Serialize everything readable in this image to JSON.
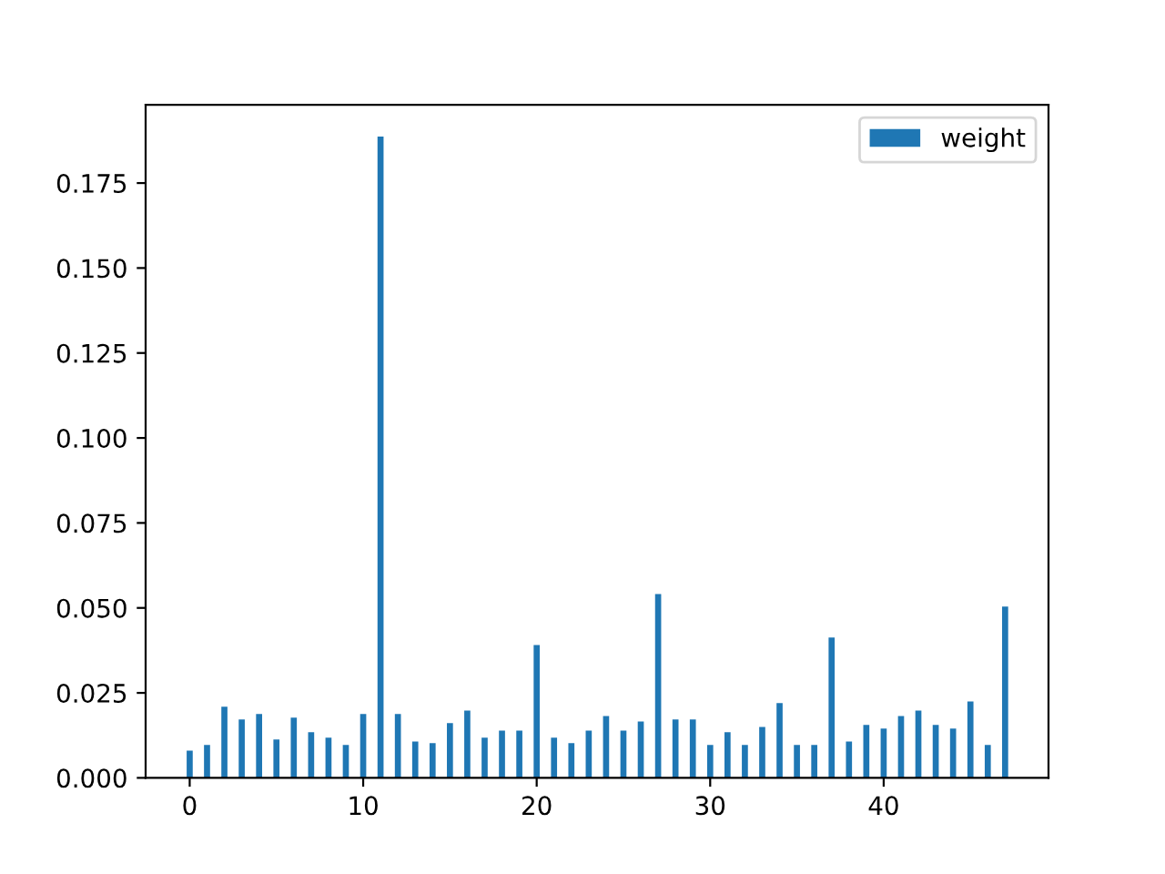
{
  "chart_data": {
    "type": "bar",
    "x": [
      0,
      1,
      2,
      3,
      4,
      5,
      6,
      7,
      8,
      9,
      10,
      11,
      12,
      13,
      14,
      15,
      16,
      17,
      18,
      19,
      20,
      21,
      22,
      23,
      24,
      25,
      26,
      27,
      28,
      29,
      30,
      31,
      32,
      33,
      34,
      35,
      36,
      37,
      38,
      39,
      40,
      41,
      42,
      43,
      44,
      45,
      46,
      47
    ],
    "series": [
      {
        "name": "weight",
        "color": "#1f77b4",
        "values": [
          0.008,
          0.0097,
          0.0209,
          0.0172,
          0.0188,
          0.0113,
          0.0177,
          0.0134,
          0.0118,
          0.0097,
          0.0188,
          0.1887,
          0.0188,
          0.0107,
          0.0102,
          0.0161,
          0.0198,
          0.0118,
          0.0139,
          0.0139,
          0.0391,
          0.0118,
          0.0102,
          0.0139,
          0.0182,
          0.0139,
          0.0166,
          0.0541,
          0.0172,
          0.0172,
          0.0097,
          0.0134,
          0.0097,
          0.015,
          0.022,
          0.0097,
          0.0097,
          0.0413,
          0.0107,
          0.0156,
          0.0145,
          0.0182,
          0.0198,
          0.0156,
          0.0145,
          0.0225,
          0.0097,
          0.0504
        ]
      }
    ],
    "xlim": [
      -2.54,
      49.5
    ],
    "ylim": [
      0,
      0.198
    ],
    "xticks": [
      0,
      10,
      20,
      30,
      40
    ],
    "yticks": [
      {
        "value": 0,
        "label": "0.000"
      },
      {
        "value": 0.025,
        "label": "0.025"
      },
      {
        "value": 0.05,
        "label": "0.050"
      },
      {
        "value": 0.075,
        "label": "0.075"
      },
      {
        "value": 0.1,
        "label": "0.100"
      },
      {
        "value": 0.125,
        "label": "0.125"
      },
      {
        "value": 0.15,
        "label": "0.150"
      },
      {
        "value": 0.175,
        "label": "0.175"
      }
    ],
    "legend": "top right",
    "grid": false
  }
}
